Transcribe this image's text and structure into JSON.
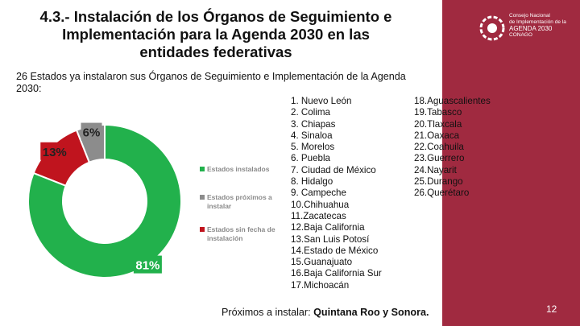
{
  "slide": {
    "title_lines": [
      "4.3.- Instalación de los Órganos de Seguimiento e",
      "Implementación para la Agenda 2030 en las",
      "entidades federativas"
    ],
    "intro": "26 Estados ya instalaron sus Órganos de Seguimiento e Implementación de la Agenda 2030:",
    "footer_prefix": "Próximos a instalar:",
    "footer_bold": "Quintana Roo y Sonora.",
    "page_number": "12"
  },
  "logo": {
    "lines": [
      "Consejo Nacional",
      "de Implementación de la",
      "AGENDA 2030",
      "CONAGO"
    ]
  },
  "states_col1": [
    "1.  Nuevo León",
    "2.  Colima",
    "3.  Chiapas",
    "4.  Sinaloa",
    "5.  Morelos",
    "6.  Puebla",
    "7.  Ciudad de México",
    "8.  Hidalgo",
    "9.  Campeche",
    "10.Chihuahua",
    "11.Zacatecas",
    "12.Baja California",
    "13.San Luis Potosí",
    "14.Estado de México",
    "15.Guanajuato",
    "16.Baja California Sur",
    "17.Michoacán"
  ],
  "states_col2": [
    "18.Aguascalientes",
    "19.Tabasco",
    "20.Tlaxcala",
    "21.Oaxaca",
    "22.Coahuila",
    "23.Guerrero",
    "24.Nayarit",
    "25.Durango",
    "26.Querétaro"
  ],
  "colors": {
    "sidebar": "#a02a40",
    "installed": "#22b14c",
    "upcoming": "#8c8c8c",
    "no_date": "#c0141e"
  },
  "chart_data": {
    "type": "pie",
    "donut": true,
    "title": "",
    "categories": [
      "Estados instalados",
      "Estados próximos a instalar",
      "Estados sin fecha de instalación"
    ],
    "values": [
      81,
      6,
      13
    ],
    "labels": [
      "81%",
      "6%",
      "13%"
    ],
    "legend": {
      "placement": "right",
      "entries": [
        {
          "text_lines": [
            "Estados instalados"
          ],
          "color": "#22b14c"
        },
        {
          "text_lines": [
            "Estados próximos a",
            "instalar"
          ],
          "color": "#8c8c8c"
        },
        {
          "text_lines": [
            "Estados sin fecha de",
            "instalación"
          ],
          "color": "#c0141e"
        }
      ]
    }
  }
}
